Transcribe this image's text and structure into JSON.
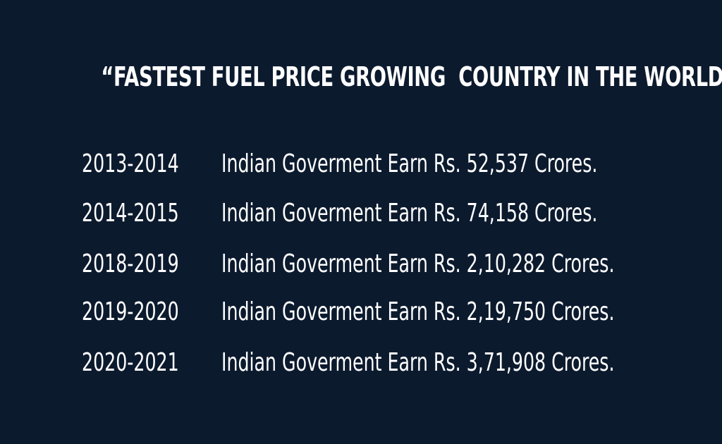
{
  "headline": "“FASTEST FUEL PRICE GROWING  COUNTRY IN THE WORLD”",
  "rows": [
    {
      "year": "2013-2014",
      "text": "Indian Goverment Earn Rs. 52,537 Crores."
    },
    {
      "year": "2014-2015",
      "text": "Indian Goverment Earn Rs. 74,158 Crores."
    },
    {
      "year": "2018-2019",
      "text": "Indian Goverment Earn Rs. 2,10,282 Crores."
    },
    {
      "year": "2019-2020",
      "text": "Indian Goverment Earn Rs. 2,19,750 Crores."
    },
    {
      "year": "2020-2021",
      "text": "Indian Goverment Earn Rs. 3,71,908 Crores."
    }
  ],
  "colors": {
    "background": "#0c1a2e",
    "text": "#ffffff"
  }
}
